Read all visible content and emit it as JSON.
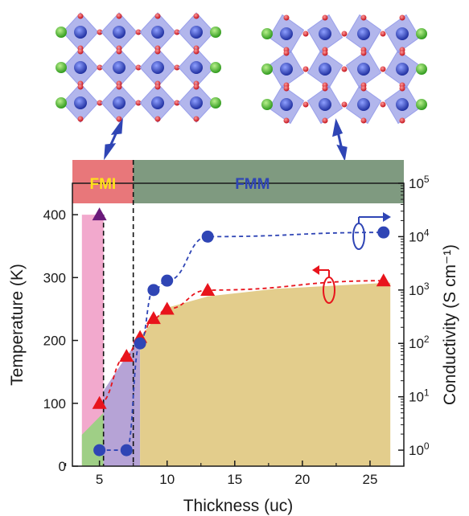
{
  "chart_data": {
    "type": "scatter",
    "xlabel": "Thickness (uc)",
    "ylabel_left": "Temperature (K)",
    "ylabel_right": "Conductivity (S cm⁻¹)",
    "xlim": [
      3,
      27.5
    ],
    "ylim_left": [
      0,
      450
    ],
    "ylim_right_log10": [
      -0.3,
      5
    ],
    "x_ticks": [
      "5",
      "10",
      "15",
      "20",
      "25"
    ],
    "x_tick_values": [
      5,
      10,
      15,
      20,
      25
    ],
    "y_left_ticks": [
      "0",
      "100",
      "200",
      "300",
      "400"
    ],
    "y_left_tick_values": [
      0,
      100,
      200,
      300,
      400
    ],
    "y_right_tick_exponents": [
      "0",
      "1",
      "2",
      "3",
      "4",
      "5"
    ],
    "y_right_tick_base": "10",
    "grid": false,
    "series": [
      {
        "axis": "left",
        "marker": "triangle",
        "color": "#e8141c",
        "line": "dashed",
        "x": [
          5,
          7,
          8,
          9,
          10,
          13,
          26
        ],
        "y": [
          100,
          175,
          205,
          235,
          250,
          280,
          295
        ]
      },
      {
        "axis": "left",
        "marker": "triangle",
        "color": "#6a1a7a",
        "line": "none",
        "x": [
          5
        ],
        "y": [
          400
        ]
      },
      {
        "axis": "right",
        "marker": "circle",
        "color": "#2f45b5",
        "line": "dashed",
        "x": [
          5,
          7,
          8,
          9,
          10,
          13,
          26
        ],
        "y": [
          1,
          1,
          100,
          1000,
          1500,
          10000,
          12000
        ]
      }
    ],
    "phases": [
      {
        "label": "FMI",
        "x_range": [
          3,
          7.5
        ],
        "band_color": "#e8777a",
        "text_color": "#ffe21a"
      },
      {
        "label": "FMM",
        "x_range": [
          7.5,
          27.5
        ],
        "band_color": "#7f9a80",
        "text_color": "#2f45b5"
      }
    ],
    "colors": {
      "metal_region": "#e3cd8c",
      "insulator_region": "#f2a9cd",
      "overlap_region": "#b6a3d6",
      "low_region": "#9fcf86",
      "red": "#e8141c",
      "blue": "#2f45b5",
      "purple": "#6a1a7a"
    }
  }
}
